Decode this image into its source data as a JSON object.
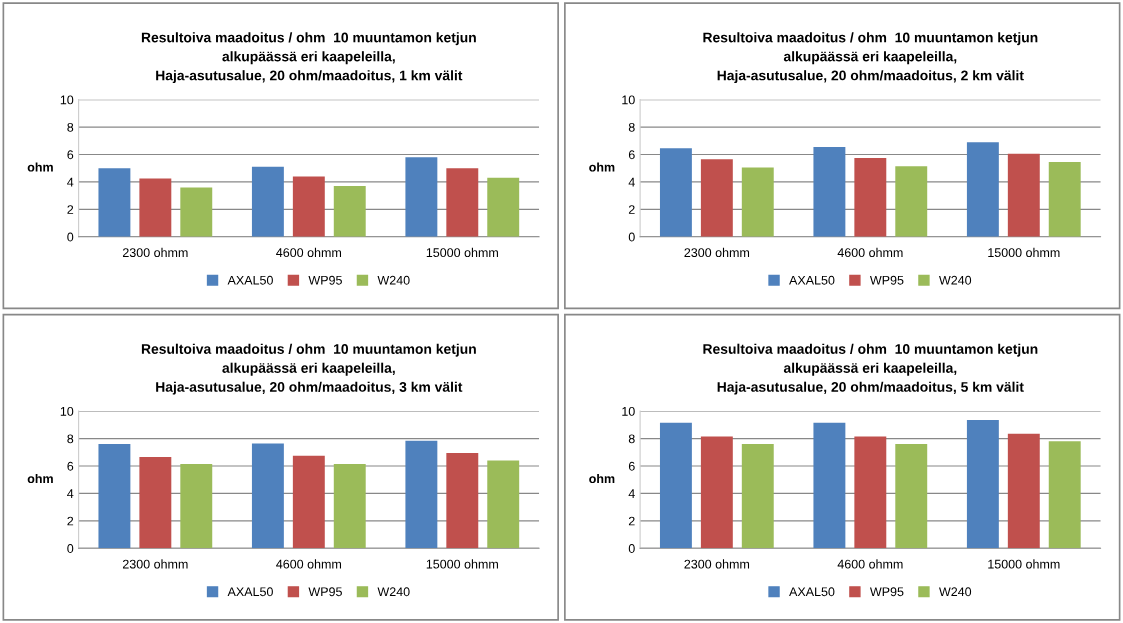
{
  "chart_data": [
    {
      "type": "bar",
      "title": "Resultoiva maadoitus / ohm  10 muuntamon ketjun\nalkupäässä eri kaapeleilla,\nHaja-asutusalue, 20 ohm/maadoitus, 1 km välit",
      "ylabel": "ohm",
      "categories": [
        "2300 ohmm",
        "4600 ohmm",
        "15000 ohmm"
      ],
      "ylim": [
        0,
        10
      ],
      "yticks": [
        0,
        2,
        4,
        6,
        8,
        10
      ],
      "grid": "y",
      "legend": "bottom",
      "series": [
        {
          "name": "AXAL50",
          "color": "#4f81bd",
          "values": [
            5.0,
            5.1,
            5.8
          ]
        },
        {
          "name": "WP95",
          "color": "#c0504d",
          "values": [
            4.25,
            4.4,
            5.0
          ]
        },
        {
          "name": "W240",
          "color": "#9bbb59",
          "values": [
            3.6,
            3.7,
            4.3
          ]
        }
      ]
    },
    {
      "type": "bar",
      "title": "Resultoiva maadoitus / ohm  10 muuntamon ketjun\nalkupäässä eri kaapeleilla,\nHaja-asutusalue, 20 ohm/maadoitus, 2 km välit",
      "ylabel": "ohm",
      "categories": [
        "2300 ohmm",
        "4600 ohmm",
        "15000 ohmm"
      ],
      "ylim": [
        0,
        10
      ],
      "yticks": [
        0,
        2,
        4,
        6,
        8,
        10
      ],
      "grid": "y",
      "legend": "bottom",
      "series": [
        {
          "name": "AXAL50",
          "color": "#4f81bd",
          "values": [
            6.45,
            6.55,
            6.9
          ]
        },
        {
          "name": "WP95",
          "color": "#c0504d",
          "values": [
            5.65,
            5.75,
            6.05
          ]
        },
        {
          "name": "W240",
          "color": "#9bbb59",
          "values": [
            5.05,
            5.15,
            5.45
          ]
        }
      ]
    },
    {
      "type": "bar",
      "title": "Resultoiva maadoitus / ohm  10 muuntamon ketjun\nalkupäässä eri kaapeleilla,\nHaja-asutusalue, 20 ohm/maadoitus, 3 km välit",
      "ylabel": "ohm",
      "categories": [
        "2300 ohmm",
        "4600 ohmm",
        "15000 ohmm"
      ],
      "ylim": [
        0,
        10
      ],
      "yticks": [
        0,
        2,
        4,
        6,
        8,
        10
      ],
      "grid": "y",
      "legend": "bottom",
      "series": [
        {
          "name": "AXAL50",
          "color": "#4f81bd",
          "values": [
            7.6,
            7.65,
            7.85
          ]
        },
        {
          "name": "WP95",
          "color": "#c0504d",
          "values": [
            6.65,
            6.75,
            6.95
          ]
        },
        {
          "name": "W240",
          "color": "#9bbb59",
          "values": [
            6.15,
            6.15,
            6.4
          ]
        }
      ]
    },
    {
      "type": "bar",
      "title": "Resultoiva maadoitus / ohm  10 muuntamon ketjun\nalkupäässä eri kaapeleilla,\nHaja-asutusalue, 20 ohm/maadoitus, 5 km välit",
      "ylabel": "ohm",
      "categories": [
        "2300 ohmm",
        "4600 ohmm",
        "15000 ohmm"
      ],
      "ylim": [
        0,
        10
      ],
      "yticks": [
        0,
        2,
        4,
        6,
        8,
        10
      ],
      "grid": "y",
      "legend": "bottom",
      "series": [
        {
          "name": "AXAL50",
          "color": "#4f81bd",
          "values": [
            9.15,
            9.15,
            9.35
          ]
        },
        {
          "name": "WP95",
          "color": "#c0504d",
          "values": [
            8.15,
            8.15,
            8.35
          ]
        },
        {
          "name": "W240",
          "color": "#9bbb59",
          "values": [
            7.6,
            7.6,
            7.8
          ]
        }
      ]
    }
  ]
}
